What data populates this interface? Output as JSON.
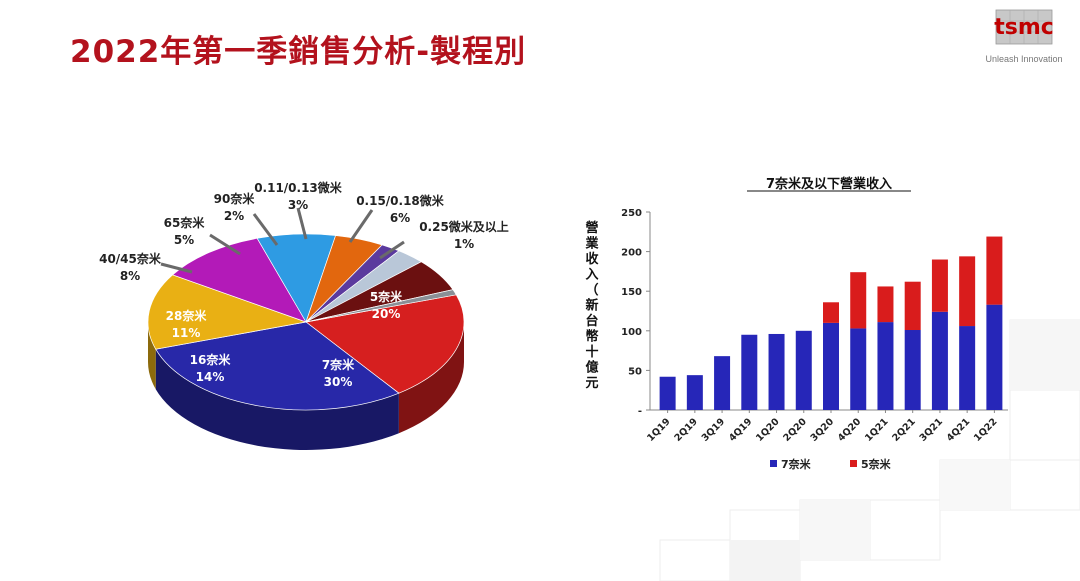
{
  "page": {
    "title": "2022年第一季銷售分析-製程別"
  },
  "logo": {
    "wordmark": "tsmc",
    "tagline": "Unleash Innovation"
  },
  "chart_data": [
    {
      "type": "pie",
      "style": "3d",
      "slices": [
        {
          "label": "5奈米",
          "pct_label": "20%",
          "value": 20,
          "color": "#d61f1f"
        },
        {
          "label": "7奈米",
          "pct_label": "30%",
          "value": 30,
          "color": "#2828a8"
        },
        {
          "label": "16奈米",
          "pct_label": "14%",
          "value": 14,
          "color": "#e9b014"
        },
        {
          "label": "28奈米",
          "pct_label": "11%",
          "value": 11,
          "color": "#b31ab8"
        },
        {
          "label": "40/45奈米",
          "pct_label": "8%",
          "value": 8,
          "color": "#2e9be3"
        },
        {
          "label": "65奈米",
          "pct_label": "5%",
          "value": 5,
          "color": "#e2670e"
        },
        {
          "label": "90奈米",
          "pct_label": "2%",
          "value": 2,
          "color": "#5b3a9e"
        },
        {
          "label": "0.11/0.13微米",
          "pct_label": "3%",
          "value": 3,
          "color": "#b9c7d8"
        },
        {
          "label": "0.15/0.18微米",
          "pct_label": "6%",
          "value": 6,
          "color": "#6b1010"
        },
        {
          "label": "0.25微米及以上",
          "pct_label": "1%",
          "value": 1,
          "color": "#8a8f96"
        }
      ]
    },
    {
      "type": "bar",
      "stacked": true,
      "title": "7奈米及以下營業收入",
      "ylabel": "營業收入（新台幣十億元",
      "ylim": [
        0,
        250
      ],
      "yticks": [
        "-",
        "50",
        "100",
        "150",
        "200",
        "250"
      ],
      "grid": false,
      "legend_position": "bottom",
      "categories": [
        "1Q19",
        "2Q19",
        "3Q19",
        "4Q19",
        "1Q20",
        "2Q20",
        "3Q20",
        "4Q20",
        "1Q21",
        "2Q21",
        "3Q21",
        "4Q21",
        "1Q22"
      ],
      "series": [
        {
          "name": "7奈米",
          "color": "#2626b8",
          "values": [
            42,
            44,
            68,
            95,
            96,
            100,
            110,
            103,
            111,
            101,
            124,
            106,
            133
          ]
        },
        {
          "name": "5奈米",
          "color": "#d91c1c",
          "values": [
            0,
            0,
            0,
            0,
            0,
            0,
            26,
            71,
            45,
            61,
            66,
            88,
            86
          ]
        }
      ]
    }
  ]
}
